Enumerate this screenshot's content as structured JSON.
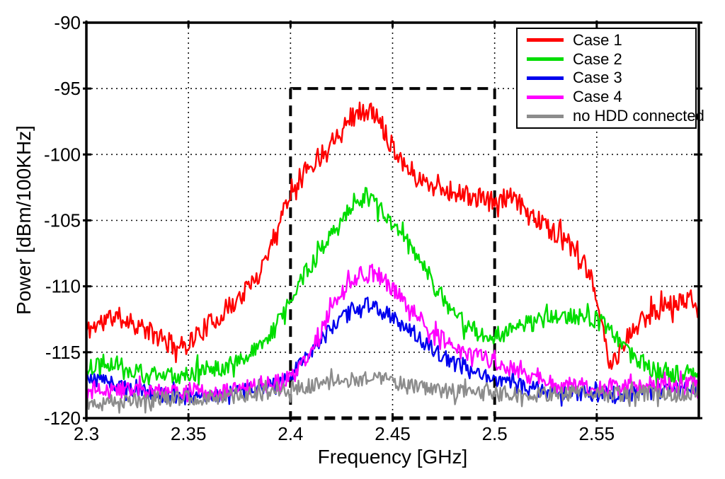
{
  "figure": {
    "background": "#ffffff",
    "accent_black": "#000000"
  },
  "chart_data": {
    "type": "line",
    "title": "",
    "xlabel": "Frequency [GHz]",
    "ylabel": "Power [dBm/100KHz]",
    "xlim": [
      2.3,
      2.6
    ],
    "ylim": [
      -120,
      -90
    ],
    "xticks": [
      2.3,
      2.35,
      2.4,
      2.45,
      2.5,
      2.55
    ],
    "xtick_labels": [
      "2.3",
      "2.35",
      "2.4",
      "2.45",
      "2.5",
      "2.55"
    ],
    "yticks": [
      -90,
      -95,
      -100,
      -105,
      -110,
      -115,
      -120
    ],
    "ytick_labels": [
      "-90",
      "-95",
      "-100",
      "-105",
      "-110",
      "-115",
      "-120"
    ],
    "grid": "dotted",
    "axis_color": "#000000",
    "legend": {
      "position": "top-right",
      "entries": [
        "Case 1",
        "Case 2",
        "Case 3",
        "Case 4",
        "no HDD connected"
      ]
    },
    "annotation_box": {
      "shape": "dashed-rectangle",
      "x_range": [
        2.4,
        2.5
      ],
      "y_range": [
        -120,
        -95
      ],
      "color": "#000000"
    },
    "series": [
      {
        "name": "Case 1",
        "color": "#ff0000",
        "noise_db": 0.8,
        "points": [
          [
            2.3,
            -113.4
          ],
          [
            2.306,
            -112.8
          ],
          [
            2.313,
            -112.3
          ],
          [
            2.32,
            -112.5
          ],
          [
            2.33,
            -113.4
          ],
          [
            2.34,
            -114.3
          ],
          [
            2.347,
            -114.6
          ],
          [
            2.354,
            -113.7
          ],
          [
            2.364,
            -112.4
          ],
          [
            2.374,
            -111.0
          ],
          [
            2.383,
            -109.5
          ],
          [
            2.391,
            -106.6
          ],
          [
            2.4,
            -102.7
          ],
          [
            2.407,
            -101.2
          ],
          [
            2.414,
            -100.2
          ],
          [
            2.421,
            -98.7
          ],
          [
            2.428,
            -97.3
          ],
          [
            2.435,
            -96.7
          ],
          [
            2.441,
            -96.9
          ],
          [
            2.446,
            -98.1
          ],
          [
            2.451,
            -99.6
          ],
          [
            2.457,
            -100.9
          ],
          [
            2.463,
            -101.9
          ],
          [
            2.471,
            -102.4
          ],
          [
            2.481,
            -102.9
          ],
          [
            2.491,
            -103.3
          ],
          [
            2.5,
            -103.6
          ],
          [
            2.508,
            -103.3
          ],
          [
            2.516,
            -104.3
          ],
          [
            2.526,
            -105.5
          ],
          [
            2.536,
            -106.8
          ],
          [
            2.545,
            -108.9
          ],
          [
            2.551,
            -111.3
          ],
          [
            2.556,
            -116.2
          ],
          [
            2.561,
            -115.1
          ],
          [
            2.567,
            -113.5
          ],
          [
            2.574,
            -112.3
          ],
          [
            2.582,
            -111.5
          ],
          [
            2.591,
            -111.2
          ],
          [
            2.6,
            -110.9
          ]
        ]
      },
      {
        "name": "Case 2",
        "color": "#00dd00",
        "noise_db": 0.7,
        "points": [
          [
            2.3,
            -116.4
          ],
          [
            2.308,
            -115.6
          ],
          [
            2.316,
            -115.9
          ],
          [
            2.326,
            -116.6
          ],
          [
            2.336,
            -116.9
          ],
          [
            2.346,
            -116.7
          ],
          [
            2.356,
            -116.4
          ],
          [
            2.366,
            -116.1
          ],
          [
            2.376,
            -115.6
          ],
          [
            2.385,
            -114.7
          ],
          [
            2.393,
            -113.1
          ],
          [
            2.4,
            -110.7
          ],
          [
            2.408,
            -108.9
          ],
          [
            2.416,
            -106.9
          ],
          [
            2.424,
            -105.0
          ],
          [
            2.431,
            -103.6
          ],
          [
            2.437,
            -103.2
          ],
          [
            2.443,
            -103.9
          ],
          [
            2.449,
            -105.2
          ],
          [
            2.456,
            -106.5
          ],
          [
            2.463,
            -107.9
          ],
          [
            2.471,
            -110.1
          ],
          [
            2.479,
            -111.9
          ],
          [
            2.487,
            -113.1
          ],
          [
            2.495,
            -113.7
          ],
          [
            2.505,
            -113.6
          ],
          [
            2.515,
            -112.9
          ],
          [
            2.525,
            -112.5
          ],
          [
            2.535,
            -112.3
          ],
          [
            2.545,
            -112.2
          ],
          [
            2.553,
            -112.8
          ],
          [
            2.561,
            -114.3
          ],
          [
            2.569,
            -115.5
          ],
          [
            2.578,
            -116.3
          ],
          [
            2.588,
            -116.7
          ],
          [
            2.6,
            -116.8
          ]
        ]
      },
      {
        "name": "Case 3",
        "color": "#0000ee",
        "noise_db": 0.6,
        "points": [
          [
            2.3,
            -117.0
          ],
          [
            2.31,
            -117.2
          ],
          [
            2.322,
            -117.8
          ],
          [
            2.334,
            -118.2
          ],
          [
            2.348,
            -118.4
          ],
          [
            2.362,
            -118.3
          ],
          [
            2.376,
            -118.0
          ],
          [
            2.388,
            -117.5
          ],
          [
            2.397,
            -117.1
          ],
          [
            2.404,
            -116.2
          ],
          [
            2.411,
            -114.9
          ],
          [
            2.418,
            -113.6
          ],
          [
            2.425,
            -112.5
          ],
          [
            2.432,
            -111.7
          ],
          [
            2.438,
            -111.4
          ],
          [
            2.444,
            -111.8
          ],
          [
            2.452,
            -112.6
          ],
          [
            2.46,
            -113.5
          ],
          [
            2.47,
            -114.8
          ],
          [
            2.48,
            -115.9
          ],
          [
            2.49,
            -116.6
          ],
          [
            2.5,
            -117.0
          ],
          [
            2.512,
            -117.6
          ],
          [
            2.526,
            -117.9
          ],
          [
            2.54,
            -118.1
          ],
          [
            2.556,
            -118.2
          ],
          [
            2.572,
            -118.1
          ],
          [
            2.586,
            -117.9
          ],
          [
            2.6,
            -117.7
          ]
        ]
      },
      {
        "name": "Case 4",
        "color": "#ff00ff",
        "noise_db": 0.65,
        "points": [
          [
            2.3,
            -118.0
          ],
          [
            2.312,
            -117.9
          ],
          [
            2.324,
            -117.8
          ],
          [
            2.336,
            -118.1
          ],
          [
            2.348,
            -117.9
          ],
          [
            2.36,
            -118.1
          ],
          [
            2.372,
            -117.9
          ],
          [
            2.384,
            -117.6
          ],
          [
            2.394,
            -117.3
          ],
          [
            2.402,
            -116.7
          ],
          [
            2.409,
            -115.0
          ],
          [
            2.416,
            -113.0
          ],
          [
            2.422,
            -111.3
          ],
          [
            2.428,
            -109.9
          ],
          [
            2.434,
            -109.1
          ],
          [
            2.44,
            -108.9
          ],
          [
            2.446,
            -109.5
          ],
          [
            2.452,
            -110.6
          ],
          [
            2.459,
            -111.6
          ],
          [
            2.467,
            -113.0
          ],
          [
            2.475,
            -114.1
          ],
          [
            2.483,
            -114.9
          ],
          [
            2.493,
            -115.4
          ],
          [
            2.503,
            -115.8
          ],
          [
            2.513,
            -116.6
          ],
          [
            2.523,
            -117.2
          ],
          [
            2.535,
            -117.5
          ],
          [
            2.55,
            -117.7
          ],
          [
            2.566,
            -117.7
          ],
          [
            2.582,
            -117.6
          ],
          [
            2.6,
            -117.5
          ]
        ]
      },
      {
        "name": "no HDD connected",
        "color": "#8c8c8c",
        "noise_db": 0.6,
        "points": [
          [
            2.3,
            -118.8
          ],
          [
            2.315,
            -118.7
          ],
          [
            2.33,
            -118.6
          ],
          [
            2.345,
            -118.5
          ],
          [
            2.36,
            -118.4
          ],
          [
            2.375,
            -118.3
          ],
          [
            2.39,
            -118.0
          ],
          [
            2.4,
            -117.8
          ],
          [
            2.41,
            -117.6
          ],
          [
            2.42,
            -117.3
          ],
          [
            2.43,
            -117.1
          ],
          [
            2.438,
            -116.9
          ],
          [
            2.446,
            -117.1
          ],
          [
            2.454,
            -117.4
          ],
          [
            2.462,
            -117.6
          ],
          [
            2.472,
            -117.9
          ],
          [
            2.482,
            -118.0
          ],
          [
            2.495,
            -118.1
          ],
          [
            2.51,
            -118.2
          ],
          [
            2.525,
            -118.2
          ],
          [
            2.54,
            -118.1
          ],
          [
            2.555,
            -118.2
          ],
          [
            2.57,
            -118.1
          ],
          [
            2.585,
            -118.2
          ],
          [
            2.6,
            -118.1
          ]
        ]
      }
    ]
  }
}
